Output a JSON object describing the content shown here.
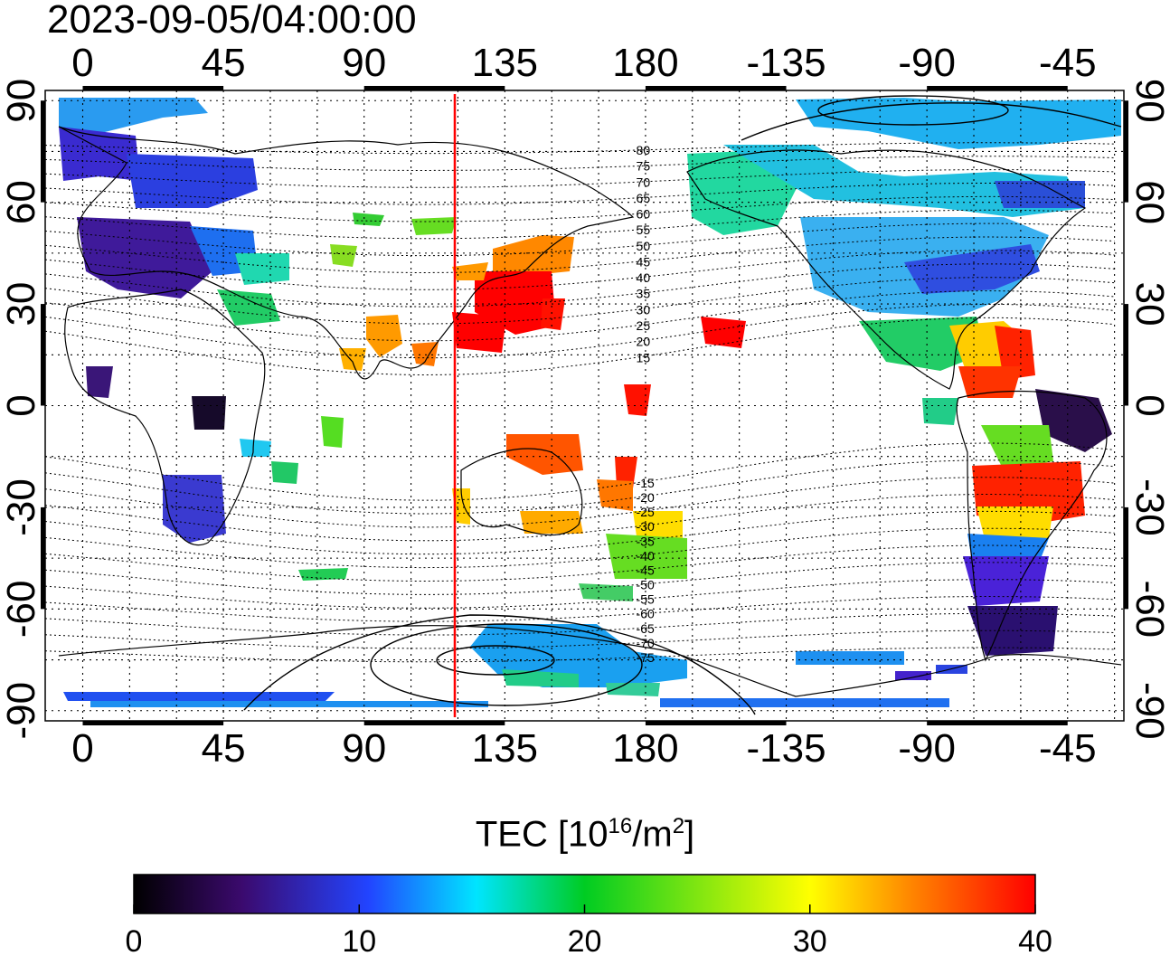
{
  "timestamp": "2023-09-05/04:00:00",
  "map": {
    "projection": "equirectangular",
    "lon_ticks": [
      "0",
      "45",
      "90",
      "135",
      "180",
      "-135",
      "-90",
      "-45"
    ],
    "lon_tick_values": [
      0,
      45,
      90,
      135,
      180,
      225,
      270,
      315
    ],
    "lat_ticks": [
      "90",
      "60",
      "30",
      "0",
      "-30",
      "-60",
      "-90"
    ],
    "lat_tick_values": [
      90,
      60,
      30,
      0,
      -30,
      -60,
      -90
    ],
    "lon_range": [
      -12,
      333
    ],
    "lat_range": [
      -93,
      93
    ],
    "grid": "dotted",
    "meridian_marker_lon": 119,
    "marker_color": "#ff0000",
    "magnetic_latitude_labels": [
      "80",
      "75",
      "70",
      "65",
      "60",
      "55",
      "50",
      "45",
      "40",
      "35",
      "30",
      "25",
      "20",
      "15",
      "-15",
      "-20",
      "-25",
      "-30",
      "-35",
      "-40",
      "-45",
      "-50",
      "-55",
      "-60",
      "-65",
      "-70",
      "-75"
    ]
  },
  "colorbar": {
    "title_prefix": "TEC  [10",
    "title_exp1": "16",
    "title_mid": "/m",
    "title_exp2": "2",
    "title_suffix": "]",
    "tick_labels": [
      "0",
      "10",
      "20",
      "30",
      "40"
    ],
    "tick_values": [
      0,
      10,
      20,
      30,
      40
    ],
    "range": [
      0,
      40
    ],
    "stops": [
      "#000000",
      "#3b0a6e",
      "#2244ff",
      "#00e5ff",
      "#00cc22",
      "#ffff00",
      "#ff8800",
      "#ff0000"
    ]
  }
}
